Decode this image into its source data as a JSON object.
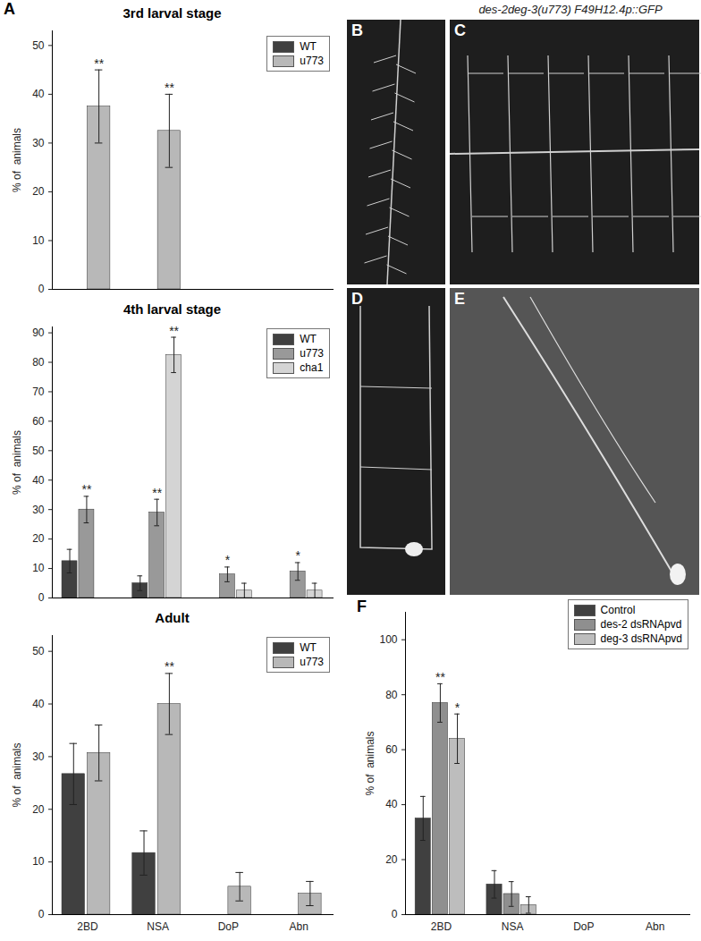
{
  "chart_data": [
    {
      "type": "bar",
      "title": "3rd larval stage",
      "annotation": "A",
      "y_label": "% of  animals",
      "categories": [
        "2BD",
        "NSA",
        "DoP",
        "Abn"
      ],
      "tick_labels": "y",
      "legend": "top-right",
      "ylim": [
        0,
        53
      ],
      "yticks": [
        0,
        10,
        20,
        30,
        40,
        50
      ],
      "series": [
        {
          "name": "WT",
          "color": "#404040",
          "values": [
            0,
            0,
            0,
            0
          ],
          "errors": [
            0,
            0,
            0,
            0
          ],
          "significance": [
            null,
            null,
            null,
            null
          ]
        },
        {
          "name": "u773",
          "color": "#b8b8b8",
          "values": [
            37.5,
            32.5,
            0,
            0
          ],
          "errors": [
            7.5,
            7.5,
            0,
            0
          ],
          "significance": [
            "**",
            "**",
            null,
            null
          ]
        }
      ]
    },
    {
      "type": "bar",
      "title": "4th larval stage",
      "y_label": "% of  animals",
      "categories": [
        "2BD",
        "NSA",
        "DoP",
        "Abn"
      ],
      "tick_labels": "y",
      "legend": "top-right",
      "ylim": [
        0,
        92
      ],
      "yticks": [
        0,
        10,
        20,
        30,
        40,
        50,
        60,
        70,
        80,
        90
      ],
      "series": [
        {
          "name": "WT",
          "color": "#404040",
          "values": [
            12.5,
            5,
            0,
            0
          ],
          "errors": [
            4,
            2.5,
            0,
            0
          ],
          "significance": [
            null,
            null,
            null,
            null
          ]
        },
        {
          "name": "u773",
          "color": "#999999",
          "values": [
            30,
            29,
            8,
            9
          ],
          "errors": [
            4.5,
            4.5,
            2.5,
            3
          ],
          "significance": [
            "**",
            "**",
            "*",
            "*"
          ]
        },
        {
          "name": "cha1",
          "color": "#d4d4d4",
          "values": [
            0,
            82.5,
            2.5,
            2.5
          ],
          "errors": [
            0,
            6,
            2.5,
            2.5
          ],
          "significance": [
            null,
            "**",
            null,
            null
          ]
        }
      ]
    },
    {
      "type": "bar",
      "title": "Adult",
      "y_label": "% of  animals",
      "categories": [
        "2BD",
        "NSA",
        "DoP",
        "Abn"
      ],
      "legend": "top-right",
      "ylim": [
        0,
        53
      ],
      "yticks": [
        0,
        10,
        20,
        30,
        40,
        50
      ],
      "series": [
        {
          "name": "WT",
          "color": "#404040",
          "values": [
            26.7,
            11.7,
            0,
            0
          ],
          "errors": [
            5.8,
            4.2,
            0,
            0
          ],
          "significance": [
            null,
            null,
            null,
            null
          ]
        },
        {
          "name": "u773",
          "color": "#b8b8b8",
          "values": [
            30.7,
            40,
            5.3,
            4
          ],
          "errors": [
            5.3,
            5.8,
            2.7,
            2.3
          ],
          "significance": [
            null,
            "**",
            null,
            null
          ]
        }
      ]
    },
    {
      "type": "bar",
      "annotation": "F",
      "y_label": "% of  animals",
      "categories": [
        "2BD",
        "NSA",
        "DoP",
        "Abn"
      ],
      "legend": "top-right",
      "ylim": [
        0,
        110
      ],
      "yticks": [
        0,
        20,
        40,
        60,
        80,
        100
      ],
      "series": [
        {
          "name": "Control",
          "color": "#404040",
          "values": [
            35,
            11,
            0,
            0
          ],
          "errors": [
            8,
            5,
            0,
            0
          ],
          "significance": [
            null,
            null,
            null,
            null
          ]
        },
        {
          "name": "des-2 dsRNApvd",
          "color": "#8f8f8f",
          "values": [
            77,
            7.5,
            0,
            0
          ],
          "errors": [
            7,
            4.5,
            0,
            0
          ],
          "significance": [
            "**",
            null,
            null,
            null
          ]
        },
        {
          "name": "deg-3 dsRNApvd",
          "color": "#bdbdbd",
          "values": [
            64,
            3.5,
            0,
            0
          ],
          "errors": [
            9,
            3,
            0,
            0
          ],
          "significance": [
            "*",
            null,
            null,
            null
          ]
        }
      ]
    }
  ],
  "images": {
    "title": "des-2deg-3(u773) F49H12.4p::GFP",
    "panels": [
      "B",
      "C",
      "D",
      "E"
    ]
  }
}
